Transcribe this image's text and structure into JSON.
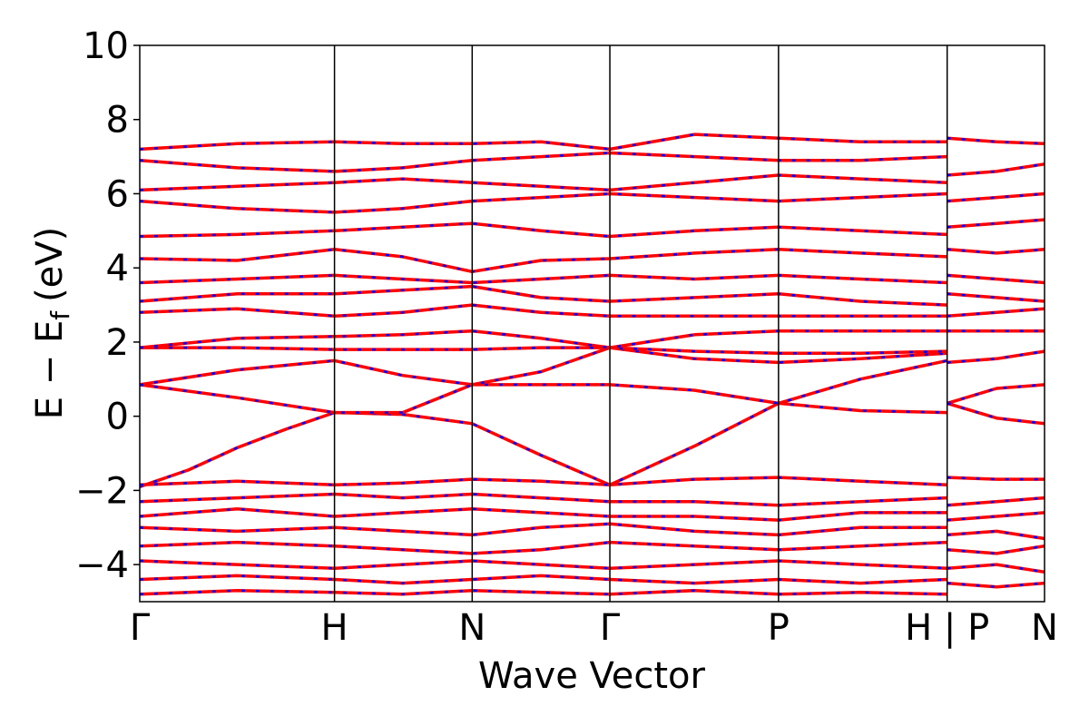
{
  "chart_data": {
    "type": "line",
    "title": "",
    "xlabel": "Wave Vector",
    "ylabel": "E − E",
    "ylabel_subscript": "f",
    "ylabel_unit": "(eV)",
    "ylim": [
      -5,
      10
    ],
    "yticks": [
      -4,
      -2,
      0,
      2,
      4,
      6,
      8,
      10
    ],
    "ytick_labels": [
      "−4",
      "−2",
      "0",
      "2",
      "4",
      "6",
      "8",
      "10"
    ],
    "grid": false,
    "legend": "none",
    "kpath": {
      "positions": [
        0.0,
        1.0,
        1.707,
        2.414,
        3.28,
        4.146,
        4.646
      ],
      "labels": [
        "Γ",
        "H",
        "N",
        "Γ",
        "P",
        "H | P",
        "N"
      ]
    },
    "colors": {
      "spin_up": "#ff0000",
      "spin_down": "#0000ff",
      "frame": "#000000"
    },
    "series": [
      {
        "x": [
          0.0,
          0.25,
          0.5,
          0.75,
          1.0,
          1.35,
          1.707,
          2.06,
          2.414,
          2.85,
          3.28,
          3.7,
          4.146
        ],
        "y": [
          -1.9,
          -1.45,
          -0.85,
          -0.35,
          0.1,
          0.05,
          -0.2,
          -1.05,
          -1.85,
          -0.8,
          0.35,
          0.15,
          0.1
        ]
      },
      {
        "x": [
          0.0,
          0.5,
          1.0,
          1.35,
          1.707,
          2.06,
          2.414,
          2.85,
          3.28,
          3.7,
          4.146
        ],
        "y": [
          0.85,
          1.25,
          1.5,
          1.1,
          0.85,
          0.85,
          0.85,
          0.7,
          0.35,
          1.0,
          1.5
        ]
      },
      {
        "x": [
          0.0,
          0.5,
          1.0,
          1.35,
          1.707,
          2.06,
          2.414,
          2.85,
          3.28,
          3.7,
          4.146
        ],
        "y": [
          0.85,
          0.5,
          0.1,
          0.1,
          0.85,
          1.2,
          1.85,
          1.55,
          1.45,
          1.55,
          1.7
        ]
      },
      {
        "x": [
          0.0,
          0.5,
          1.0,
          1.35,
          1.707,
          2.06,
          2.414,
          2.85,
          3.28,
          3.7,
          4.146
        ],
        "y": [
          1.85,
          1.85,
          1.8,
          1.8,
          1.8,
          1.85,
          1.85,
          1.75,
          1.7,
          1.7,
          1.75
        ]
      },
      {
        "x": [
          0.0,
          0.5,
          1.0,
          1.35,
          1.707,
          2.06,
          2.414,
          2.85,
          3.28,
          3.7,
          4.146
        ],
        "y": [
          1.85,
          2.1,
          2.15,
          2.2,
          2.3,
          2.1,
          1.85,
          2.2,
          2.3,
          2.3,
          2.3
        ]
      },
      {
        "x": [
          0.0,
          0.5,
          1.0,
          1.35,
          1.707,
          2.06,
          2.414,
          2.85,
          3.28,
          3.7,
          4.146
        ],
        "y": [
          2.8,
          2.9,
          2.7,
          2.8,
          3.0,
          2.8,
          2.7,
          2.7,
          2.7,
          2.7,
          2.7
        ]
      },
      {
        "x": [
          0.0,
          0.5,
          1.0,
          1.35,
          1.707,
          2.06,
          2.414,
          2.85,
          3.28,
          3.7,
          4.146
        ],
        "y": [
          3.1,
          3.3,
          3.3,
          3.4,
          3.5,
          3.2,
          3.1,
          3.2,
          3.3,
          3.1,
          3.0
        ]
      },
      {
        "x": [
          0.0,
          0.5,
          1.0,
          1.35,
          1.707,
          2.06,
          2.414,
          2.85,
          3.28,
          3.7,
          4.146
        ],
        "y": [
          3.6,
          3.7,
          3.8,
          3.7,
          3.6,
          3.7,
          3.8,
          3.7,
          3.8,
          3.7,
          3.6
        ]
      },
      {
        "x": [
          0.0,
          0.5,
          1.0,
          1.35,
          1.707,
          2.06,
          2.414,
          2.85,
          3.28,
          3.7,
          4.146
        ],
        "y": [
          4.25,
          4.2,
          4.5,
          4.3,
          3.9,
          4.2,
          4.25,
          4.4,
          4.5,
          4.4,
          4.3
        ]
      },
      {
        "x": [
          0.0,
          0.5,
          1.0,
          1.35,
          1.707,
          2.06,
          2.414,
          2.85,
          3.28,
          3.7,
          4.146
        ],
        "y": [
          4.85,
          4.9,
          5.0,
          5.1,
          5.2,
          5.0,
          4.85,
          5.0,
          5.1,
          5.0,
          4.9
        ]
      },
      {
        "x": [
          0.0,
          0.5,
          1.0,
          1.35,
          1.707,
          2.06,
          2.414,
          2.85,
          3.28,
          3.7,
          4.146
        ],
        "y": [
          5.8,
          5.6,
          5.5,
          5.6,
          5.8,
          5.9,
          6.0,
          5.9,
          5.8,
          5.9,
          6.0
        ]
      },
      {
        "x": [
          0.0,
          0.5,
          1.0,
          1.35,
          1.707,
          2.06,
          2.414,
          2.85,
          3.28,
          3.7,
          4.146
        ],
        "y": [
          6.1,
          6.2,
          6.3,
          6.4,
          6.3,
          6.2,
          6.1,
          6.3,
          6.5,
          6.4,
          6.3
        ]
      },
      {
        "x": [
          0.0,
          0.5,
          1.0,
          1.35,
          1.707,
          2.06,
          2.414,
          2.85,
          3.28,
          3.7,
          4.146
        ],
        "y": [
          6.9,
          6.7,
          6.6,
          6.7,
          6.9,
          7.0,
          7.1,
          7.0,
          6.9,
          6.9,
          7.0
        ]
      },
      {
        "x": [
          0.0,
          0.5,
          1.0,
          1.35,
          1.707,
          2.06,
          2.414,
          2.85,
          3.28,
          3.7,
          4.146
        ],
        "y": [
          7.2,
          7.35,
          7.4,
          7.35,
          7.35,
          7.4,
          7.2,
          7.6,
          7.5,
          7.4,
          7.4
        ]
      },
      {
        "x": [
          0.0,
          0.5,
          1.0,
          1.35,
          1.707,
          2.06,
          2.414,
          2.85,
          3.28,
          3.7,
          4.146
        ],
        "y": [
          -1.85,
          -1.75,
          -1.85,
          -1.8,
          -1.7,
          -1.75,
          -1.85,
          -1.7,
          -1.65,
          -1.75,
          -1.85
        ]
      },
      {
        "x": [
          0.0,
          0.5,
          1.0,
          1.35,
          1.707,
          2.06,
          2.414,
          2.85,
          3.28,
          3.7,
          4.146
        ],
        "y": [
          -2.3,
          -2.2,
          -2.1,
          -2.2,
          -2.1,
          -2.2,
          -2.3,
          -2.3,
          -2.4,
          -2.3,
          -2.2
        ]
      },
      {
        "x": [
          0.0,
          0.5,
          1.0,
          1.35,
          1.707,
          2.06,
          2.414,
          2.85,
          3.28,
          3.7,
          4.146
        ],
        "y": [
          -2.7,
          -2.5,
          -2.7,
          -2.6,
          -2.5,
          -2.6,
          -2.7,
          -2.7,
          -2.8,
          -2.6,
          -2.6
        ]
      },
      {
        "x": [
          0.0,
          0.5,
          1.0,
          1.35,
          1.707,
          2.06,
          2.414,
          2.85,
          3.28,
          3.7,
          4.146
        ],
        "y": [
          -3.0,
          -3.1,
          -3.0,
          -3.1,
          -3.2,
          -3.0,
          -2.9,
          -3.1,
          -3.2,
          -3.0,
          -3.0
        ]
      },
      {
        "x": [
          0.0,
          0.5,
          1.0,
          1.35,
          1.707,
          2.06,
          2.414,
          2.85,
          3.28,
          3.7,
          4.146
        ],
        "y": [
          -3.5,
          -3.4,
          -3.5,
          -3.6,
          -3.7,
          -3.6,
          -3.4,
          -3.5,
          -3.6,
          -3.5,
          -3.4
        ]
      },
      {
        "x": [
          0.0,
          0.5,
          1.0,
          1.35,
          1.707,
          2.06,
          2.414,
          2.85,
          3.28,
          3.7,
          4.146
        ],
        "y": [
          -3.9,
          -4.0,
          -4.1,
          -4.0,
          -3.9,
          -4.0,
          -4.1,
          -4.0,
          -3.9,
          -4.0,
          -4.1
        ]
      },
      {
        "x": [
          0.0,
          0.5,
          1.0,
          1.35,
          1.707,
          2.06,
          2.414,
          2.85,
          3.28,
          3.7,
          4.146
        ],
        "y": [
          -4.4,
          -4.3,
          -4.4,
          -4.5,
          -4.4,
          -4.3,
          -4.4,
          -4.5,
          -4.4,
          -4.5,
          -4.4
        ]
      },
      {
        "x": [
          0.0,
          0.5,
          1.0,
          1.35,
          1.707,
          2.06,
          2.414,
          2.85,
          3.28,
          3.7,
          4.146
        ],
        "y": [
          -4.8,
          -4.7,
          -4.75,
          -4.8,
          -4.7,
          -4.75,
          -4.8,
          -4.7,
          -4.8,
          -4.75,
          -4.8
        ]
      },
      {
        "x": [
          4.146,
          4.4,
          4.646
        ],
        "y": [
          0.35,
          0.75,
          0.85
        ]
      },
      {
        "x": [
          4.146,
          4.4,
          4.646
        ],
        "y": [
          0.35,
          -0.05,
          -0.2
        ]
      },
      {
        "x": [
          4.146,
          4.4,
          4.646
        ],
        "y": [
          1.45,
          1.55,
          1.75
        ]
      },
      {
        "x": [
          4.146,
          4.4,
          4.646
        ],
        "y": [
          2.3,
          2.3,
          2.3
        ]
      },
      {
        "x": [
          4.146,
          4.4,
          4.646
        ],
        "y": [
          2.7,
          2.8,
          2.9
        ]
      },
      {
        "x": [
          4.146,
          4.4,
          4.646
        ],
        "y": [
          3.3,
          3.2,
          3.1
        ]
      },
      {
        "x": [
          4.146,
          4.4,
          4.646
        ],
        "y": [
          3.8,
          3.7,
          3.6
        ]
      },
      {
        "x": [
          4.146,
          4.4,
          4.646
        ],
        "y": [
          4.5,
          4.4,
          4.5
        ]
      },
      {
        "x": [
          4.146,
          4.4,
          4.646
        ],
        "y": [
          5.1,
          5.2,
          5.3
        ]
      },
      {
        "x": [
          4.146,
          4.4,
          4.646
        ],
        "y": [
          5.8,
          5.9,
          6.0
        ]
      },
      {
        "x": [
          4.146,
          4.4,
          4.646
        ],
        "y": [
          6.5,
          6.6,
          6.8
        ]
      },
      {
        "x": [
          4.146,
          4.4,
          4.646
        ],
        "y": [
          7.5,
          7.4,
          7.35
        ]
      },
      {
        "x": [
          4.146,
          4.4,
          4.646
        ],
        "y": [
          -1.65,
          -1.7,
          -1.7
        ]
      },
      {
        "x": [
          4.146,
          4.4,
          4.646
        ],
        "y": [
          -2.4,
          -2.3,
          -2.2
        ]
      },
      {
        "x": [
          4.146,
          4.4,
          4.646
        ],
        "y": [
          -2.8,
          -2.7,
          -2.6
        ]
      },
      {
        "x": [
          4.146,
          4.4,
          4.646
        ],
        "y": [
          -3.2,
          -3.1,
          -3.3
        ]
      },
      {
        "x": [
          4.146,
          4.4,
          4.646
        ],
        "y": [
          -3.6,
          -3.7,
          -3.5
        ]
      },
      {
        "x": [
          4.146,
          4.4,
          4.646
        ],
        "y": [
          -4.1,
          -4.0,
          -4.2
        ]
      },
      {
        "x": [
          4.146,
          4.4,
          4.646
        ],
        "y": [
          -4.5,
          -4.6,
          -4.5
        ]
      }
    ]
  }
}
